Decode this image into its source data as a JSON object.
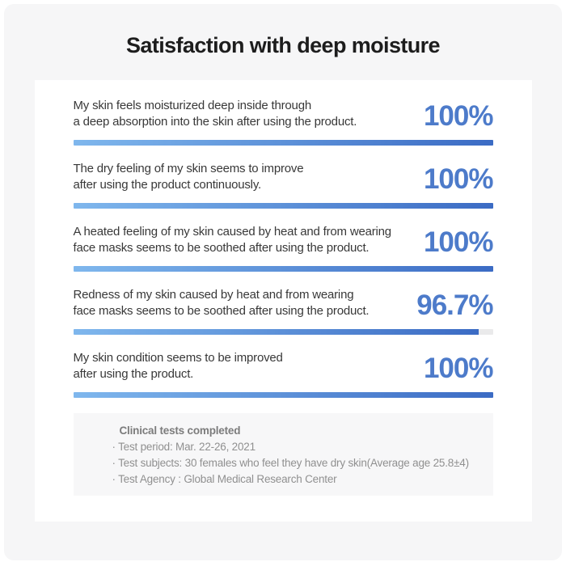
{
  "page": {
    "title": "Satisfaction with deep moisture"
  },
  "items": [
    {
      "line1": "My skin feels moisturized deep inside through",
      "line2": "a deep absorption into the skin after using the product.",
      "percent_label": "100%",
      "percent_value": 100
    },
    {
      "line1": "The dry feeling of my skin seems to improve",
      "line2": "after using the product continuously.",
      "percent_label": "100%",
      "percent_value": 100
    },
    {
      "line1": "A heated feeling of my skin caused by heat and from wearing",
      "line2": "face masks seems to be soothed after using the product.",
      "percent_label": "100%",
      "percent_value": 100
    },
    {
      "line1": "Redness of my skin caused by heat and from wearing",
      "line2": "face masks seems to be soothed after using the product.",
      "percent_label": "96.7%",
      "percent_value": 96.7
    },
    {
      "line1": "My skin condition seems to be improved",
      "line2": "after using the product.",
      "percent_label": "100%",
      "percent_value": 100
    }
  ],
  "footer": {
    "heading": "Clinical tests completed",
    "lines": [
      "· Test period: Mar. 22-26, 2021",
      "· Test subjects: 30 females who feel they have dry skin(Average age 25.8±4)",
      "· Test Agency : Global Medical Research Center"
    ]
  },
  "colors": {
    "percent_text": "#4d7bca",
    "bar_gradient_start": "#7fb7ed",
    "bar_gradient_end": "#3b6bc4",
    "bar_track": "#eaeaeb",
    "panel_background": "#f6f6f7",
    "card_background": "#ffffff"
  },
  "chart_data": {
    "type": "bar",
    "orientation": "horizontal",
    "title": "Satisfaction with deep moisture",
    "categories": [
      "My skin feels moisturized deep inside through a deep absorption into the skin after using the product.",
      "The dry feeling of my skin seems to improve after using the product continuously.",
      "A heated feeling of my skin caused by heat and from wearing face masks seems to be soothed after using the product.",
      "Redness of my skin caused by heat and from wearing face masks seems to be soothed after using the product.",
      "My skin condition seems to be improved after using the product."
    ],
    "values": [
      100,
      100,
      100,
      96.7,
      100
    ],
    "value_labels": [
      "100%",
      "100%",
      "100%",
      "96.7%",
      "100%"
    ],
    "xlabel": "",
    "ylabel": "",
    "xlim": [
      0,
      100
    ],
    "grid": false,
    "legend": false
  }
}
